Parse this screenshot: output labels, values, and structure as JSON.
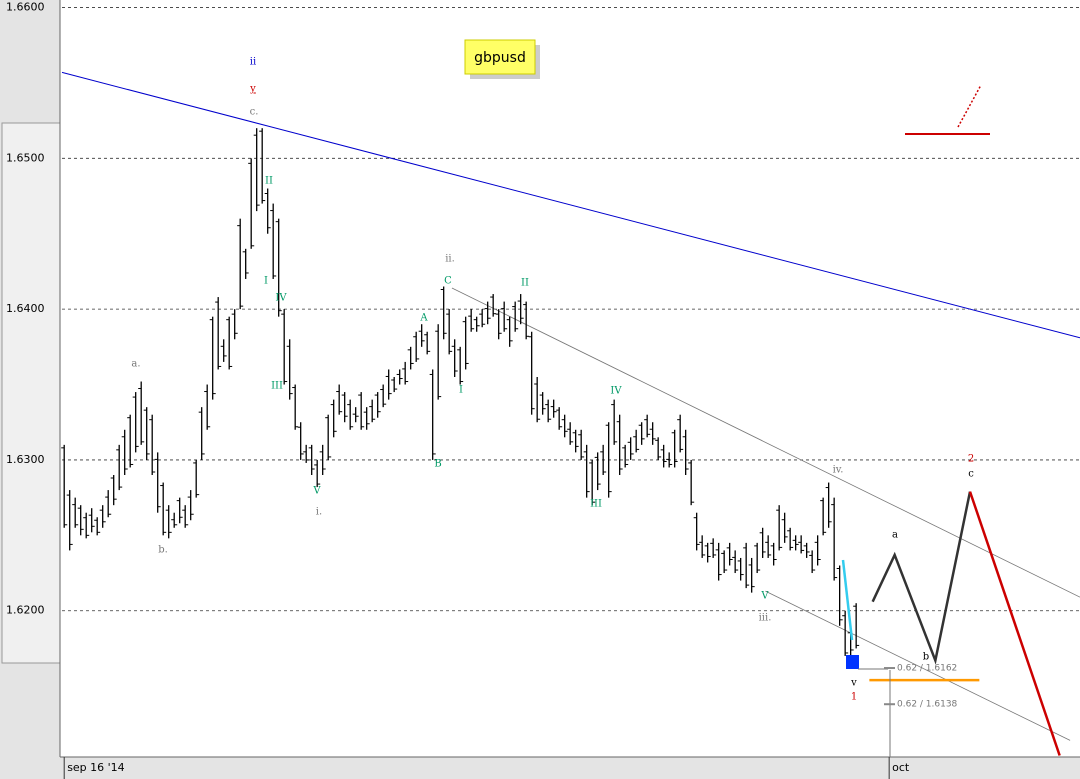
{
  "chart_data": {
    "type": "ohlc",
    "title": "gbpusd",
    "ylim": [
      1.6103,
      1.6605
    ],
    "yticks": [
      {
        "value": 1.66,
        "label": "1.6600"
      },
      {
        "value": 1.65,
        "label": "1.6500"
      },
      {
        "value": 1.64,
        "label": "1.6400"
      },
      {
        "value": 1.63,
        "label": "1.6300"
      },
      {
        "value": 1.62,
        "label": "1.6200"
      }
    ],
    "xlim": [
      -0.4,
      184.7
    ],
    "xticks": [
      {
        "value": 0,
        "label": "sep 16 '14"
      },
      {
        "value": 150,
        "label": "oct"
      }
    ],
    "grid": true,
    "color": "#000000",
    "bars": [
      [
        1.631,
        1.6255
      ],
      [
        1.628,
        1.624
      ],
      [
        1.6275,
        1.6255
      ],
      [
        1.627,
        1.625
      ],
      [
        1.6265,
        1.6248
      ],
      [
        1.6268,
        1.6252
      ],
      [
        1.6262,
        1.625
      ],
      [
        1.627,
        1.6255
      ],
      [
        1.628,
        1.6262
      ],
      [
        1.629,
        1.627
      ],
      [
        1.631,
        1.628
      ],
      [
        1.632,
        1.629
      ],
      [
        1.633,
        1.6295
      ],
      [
        1.6345,
        1.6305
      ],
      [
        1.6352,
        1.631
      ],
      [
        1.6335,
        1.63
      ],
      [
        1.633,
        1.629
      ],
      [
        1.6305,
        1.6265
      ],
      [
        1.6285,
        1.625
      ],
      [
        1.627,
        1.6248
      ],
      [
        1.6265,
        1.6255
      ],
      [
        1.6275,
        1.6258
      ],
      [
        1.627,
        1.6255
      ],
      [
        1.628,
        1.626
      ],
      [
        1.63,
        1.6275
      ],
      [
        1.6335,
        1.63
      ],
      [
        1.635,
        1.632
      ],
      [
        1.6395,
        1.634
      ],
      [
        1.6408,
        1.636
      ],
      [
        1.638,
        1.6365
      ],
      [
        1.6395,
        1.636
      ],
      [
        1.64,
        1.638
      ],
      [
        1.646,
        1.64
      ],
      [
        1.644,
        1.642
      ],
      [
        1.65,
        1.644
      ],
      [
        1.652,
        1.6465
      ],
      [
        1.652,
        1.647
      ],
      [
        1.648,
        1.645
      ],
      [
        1.647,
        1.642
      ],
      [
        1.646,
        1.6395
      ],
      [
        1.64,
        1.635
      ],
      [
        1.638,
        1.634
      ],
      [
        1.635,
        1.632
      ],
      [
        1.6325,
        1.63
      ],
      [
        1.631,
        1.6298
      ],
      [
        1.631,
        1.629
      ],
      [
        1.63,
        1.6282
      ],
      [
        1.631,
        1.629
      ],
      [
        1.633,
        1.63
      ],
      [
        1.634,
        1.6315
      ],
      [
        1.635,
        1.633
      ],
      [
        1.6345,
        1.6325
      ],
      [
        1.634,
        1.632
      ],
      [
        1.6335,
        1.6325
      ],
      [
        1.6345,
        1.632
      ],
      [
        1.6335,
        1.632
      ],
      [
        1.634,
        1.6325
      ],
      [
        1.6345,
        1.6328
      ],
      [
        1.635,
        1.6335
      ],
      [
        1.636,
        1.634
      ],
      [
        1.6355,
        1.6345
      ],
      [
        1.636,
        1.635
      ],
      [
        1.6365,
        1.635
      ],
      [
        1.6375,
        1.636
      ],
      [
        1.6385,
        1.6365
      ],
      [
        1.639,
        1.6375
      ],
      [
        1.6385,
        1.637
      ],
      [
        1.636,
        1.63
      ],
      [
        1.639,
        1.634
      ],
      [
        1.6415,
        1.638
      ],
      [
        1.64,
        1.637
      ],
      [
        1.638,
        1.6355
      ],
      [
        1.6375,
        1.635
      ],
      [
        1.6395,
        1.636
      ],
      [
        1.64,
        1.6385
      ],
      [
        1.6395,
        1.6385
      ],
      [
        1.64,
        1.6388
      ],
      [
        1.6405,
        1.639
      ],
      [
        1.641,
        1.6395
      ],
      [
        1.64,
        1.638
      ],
      [
        1.6405,
        1.6385
      ],
      [
        1.6395,
        1.6375
      ],
      [
        1.6405,
        1.6385
      ],
      [
        1.641,
        1.639
      ],
      [
        1.6405,
        1.638
      ],
      [
        1.6385,
        1.633
      ],
      [
        1.6355,
        1.6325
      ],
      [
        1.6345,
        1.633
      ],
      [
        1.634,
        1.6325
      ],
      [
        1.634,
        1.6328
      ],
      [
        1.6335,
        1.632
      ],
      [
        1.633,
        1.6315
      ],
      [
        1.6325,
        1.631
      ],
      [
        1.632,
        1.6305
      ],
      [
        1.632,
        1.63
      ],
      [
        1.631,
        1.6275
      ],
      [
        1.63,
        1.627
      ],
      [
        1.6305,
        1.628
      ],
      [
        1.631,
        1.629
      ],
      [
        1.6325,
        1.6275
      ],
      [
        1.634,
        1.631
      ],
      [
        1.633,
        1.629
      ],
      [
        1.631,
        1.6295
      ],
      [
        1.6315,
        1.63
      ],
      [
        1.632,
        1.6305
      ],
      [
        1.6325,
        1.631
      ],
      [
        1.633,
        1.6315
      ],
      [
        1.6325,
        1.631
      ],
      [
        1.6315,
        1.63
      ],
      [
        1.631,
        1.6295
      ],
      [
        1.6305,
        1.6295
      ],
      [
        1.632,
        1.6295
      ],
      [
        1.633,
        1.6305
      ],
      [
        1.632,
        1.629
      ],
      [
        1.63,
        1.627
      ],
      [
        1.6265,
        1.624
      ],
      [
        1.625,
        1.6235
      ],
      [
        1.6245,
        1.6232
      ],
      [
        1.6248,
        1.6235
      ],
      [
        1.6245,
        1.622
      ],
      [
        1.624,
        1.6225
      ],
      [
        1.6245,
        1.623
      ],
      [
        1.624,
        1.6225
      ],
      [
        1.6235,
        1.622
      ],
      [
        1.6245,
        1.6215
      ],
      [
        1.6235,
        1.6212
      ],
      [
        1.6245,
        1.6225
      ],
      [
        1.6255,
        1.6235
      ],
      [
        1.625,
        1.6235
      ],
      [
        1.6245,
        1.623
      ],
      [
        1.627,
        1.624
      ],
      [
        1.6265,
        1.6245
      ],
      [
        1.6255,
        1.624
      ],
      [
        1.625,
        1.624
      ],
      [
        1.625,
        1.6238
      ],
      [
        1.6245,
        1.6235
      ],
      [
        1.624,
        1.6225
      ],
      [
        1.625,
        1.623
      ],
      [
        1.6275,
        1.625
      ],
      [
        1.6285,
        1.6255
      ],
      [
        1.6275,
        1.622
      ],
      [
        1.623,
        1.619
      ],
      [
        1.62,
        1.617
      ],
      [
        1.619,
        1.617
      ],
      [
        1.6205,
        1.6175
      ]
    ],
    "lines": [
      {
        "color": "#0000cc",
        "x": [
          -0.4,
          184.7
        ],
        "y": [
          1.6557,
          1.6381
        ]
      },
      {
        "color": "#777777",
        "x": [
          70.5,
          184.7
        ],
        "y": [
          1.6414,
          1.6209
        ]
      },
      {
        "color": "#777777",
        "x": [
          127.5,
          182.9
        ],
        "y": [
          1.6213,
          1.6114
        ]
      },
      {
        "color": "#333333",
        "x": [
          147,
          151,
          158.4,
          164.7
        ],
        "y": [
          1.6206,
          1.6237,
          1.6167,
          1.6279
        ]
      },
      {
        "color": "#cc0000",
        "x": [
          164.7,
          181
        ],
        "y": [
          1.6279,
          1.6104
        ]
      },
      {
        "color": "#ff9900",
        "x": [
          146.4,
          166.4
        ],
        "y": [
          1.6154,
          1.6154
        ]
      }
    ],
    "levels": [
      {
        "label": "0.62 / 1.6162",
        "value": 1.6162
      },
      {
        "label": "0.62 / 1.6138",
        "value": 1.6138
      }
    ],
    "annotations": [
      {
        "text": "ii",
        "color": "#0000cc"
      },
      {
        "text": "y",
        "color": "#cc0000"
      },
      {
        "text": "c.",
        "color": "#777777"
      },
      {
        "text": "II",
        "color": "#009966"
      },
      {
        "text": "I",
        "color": "#009966"
      },
      {
        "text": "IV",
        "color": "#009966"
      },
      {
        "text": "III",
        "color": "#009966"
      },
      {
        "text": "a.",
        "color": "#777777"
      },
      {
        "text": "b.",
        "color": "#777777"
      },
      {
        "text": "V",
        "color": "#009966"
      },
      {
        "text": "i.",
        "color": "#777777"
      },
      {
        "text": "A",
        "color": "#009966"
      },
      {
        "text": "B",
        "color": "#009966"
      },
      {
        "text": "C",
        "color": "#009966"
      },
      {
        "text": "ii.",
        "color": "#777777"
      },
      {
        "text": "I",
        "color": "#009966"
      },
      {
        "text": "II",
        "color": "#009966"
      },
      {
        "text": "IV",
        "color": "#009966"
      },
      {
        "text": "III",
        "color": "#009966"
      },
      {
        "text": "V",
        "color": "#009966"
      },
      {
        "text": "iii.",
        "color": "#777777"
      },
      {
        "text": "iv.",
        "color": "#777777"
      },
      {
        "text": "v",
        "color": "#000000"
      },
      {
        "text": "1",
        "color": "#cc0000"
      },
      {
        "text": "a",
        "color": "#000000"
      },
      {
        "text": "b",
        "color": "#000000"
      },
      {
        "text": "2",
        "color": "#cc0000"
      },
      {
        "text": "c",
        "color": "#000000"
      }
    ]
  }
}
